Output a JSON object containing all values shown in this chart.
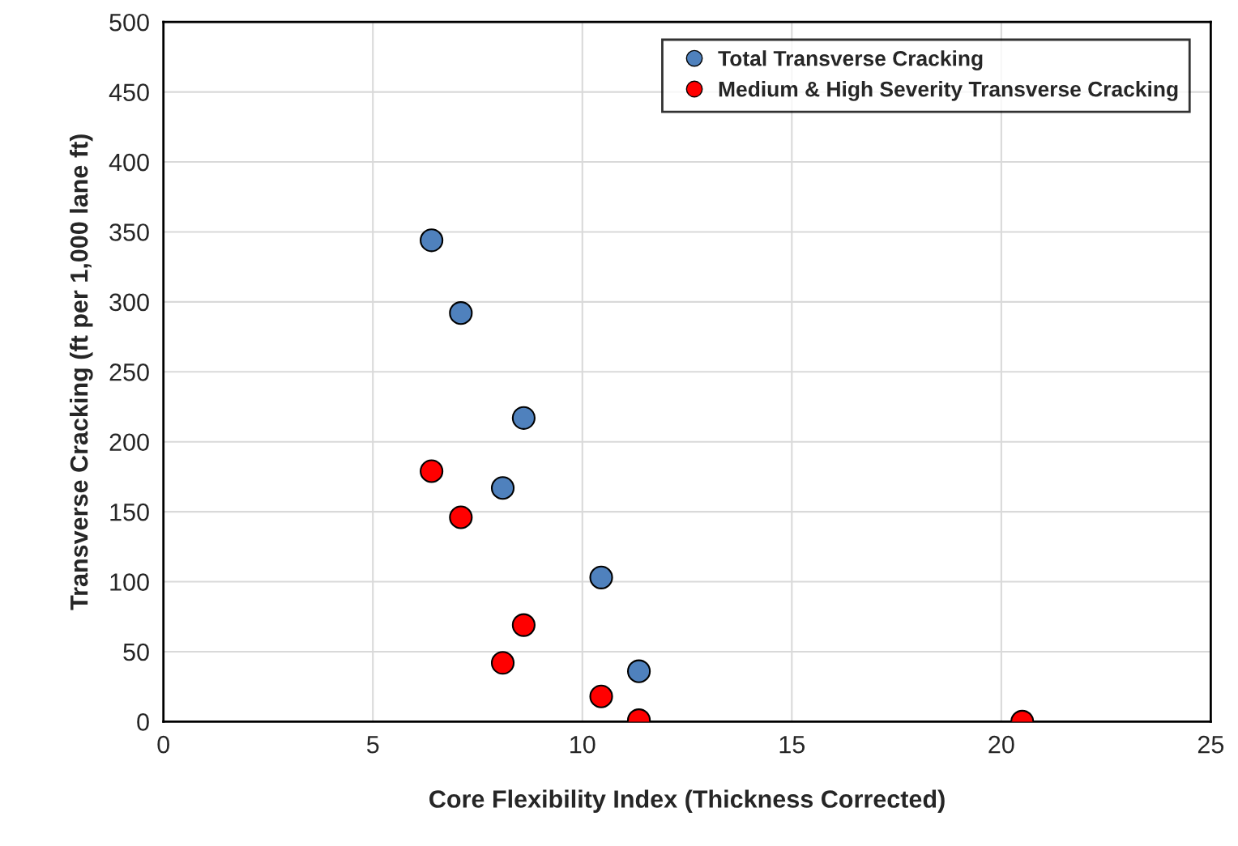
{
  "chart_data": {
    "type": "scatter",
    "xlabel": "Core Flexibility Index (Thickness Corrected)",
    "ylabel": "Transverse Cracking (ft per 1,000 lane ft)",
    "xlim": [
      0,
      25
    ],
    "xticks": [
      0,
      5,
      10,
      15,
      20,
      25
    ],
    "ylim": [
      0,
      500
    ],
    "yticks": [
      0,
      50,
      100,
      150,
      200,
      250,
      300,
      350,
      400,
      450,
      500
    ],
    "grid": true,
    "legend": "top right",
    "marker": "circle",
    "series": [
      {
        "name": "Total Transverse Cracking",
        "color": "#4f81bd",
        "x": [
          6.4,
          7.1,
          8.6,
          8.1,
          10.45,
          11.35
        ],
        "values": [
          344,
          292,
          217,
          167,
          103,
          36
        ]
      },
      {
        "name": "Medium & High Severity Transverse Cracking",
        "color": "#ff0000",
        "x": [
          6.4,
          7.1,
          8.6,
          8.1,
          10.45,
          11.35,
          20.5
        ],
        "values": [
          179,
          146,
          69,
          42,
          18,
          1,
          0
        ]
      }
    ]
  }
}
